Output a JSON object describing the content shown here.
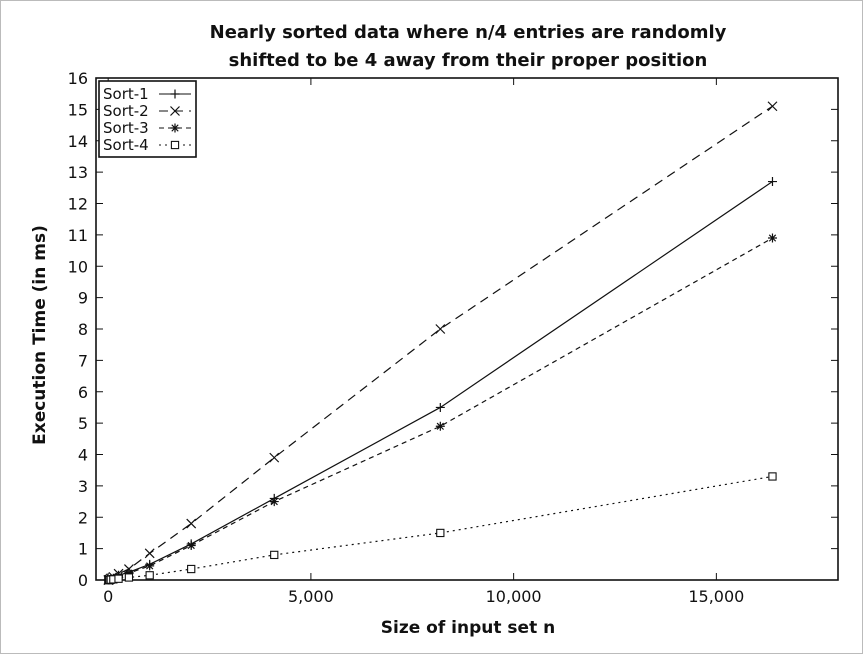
{
  "chart_data": {
    "type": "line",
    "title_line1": "Nearly sorted data where n/4 entries are randomly",
    "title_line2": "shifted to be 4 away from their proper position",
    "xlabel": "Size of input set n",
    "ylabel": "Execution Time (in ms)",
    "xlim": [
      -300,
      18000
    ],
    "ylim": [
      0,
      16
    ],
    "x_ticks": [
      0,
      5000,
      10000,
      15000
    ],
    "x_tick_labels": [
      "0",
      "5,000",
      "10,000",
      "15,000"
    ],
    "y_ticks": [
      0,
      1,
      2,
      3,
      4,
      5,
      6,
      7,
      8,
      9,
      10,
      11,
      12,
      13,
      14,
      15,
      16
    ],
    "y_tick_labels": [
      "0",
      "1",
      "2",
      "3",
      "4",
      "5",
      "6",
      "7",
      "8",
      "9",
      "10",
      "11",
      "12",
      "13",
      "14",
      "15",
      "16"
    ],
    "grid": false,
    "legend_position": "top-left",
    "x": [
      4,
      8,
      16,
      32,
      64,
      128,
      256,
      512,
      1024,
      2048,
      4096,
      8192,
      16384
    ],
    "series": [
      {
        "name": "Sort-1",
        "marker": "plus",
        "dash": "solid",
        "values": [
          0,
          0,
          0,
          0.01,
          0.02,
          0.05,
          0.15,
          0.25,
          0.5,
          1.15,
          2.6,
          5.5,
          12.7
        ]
      },
      {
        "name": "Sort-2",
        "marker": "x",
        "dash": "longdash",
        "values": [
          0,
          0,
          0,
          0.02,
          0.05,
          0.1,
          0.2,
          0.35,
          0.85,
          1.8,
          3.9,
          8.0,
          15.1
        ]
      },
      {
        "name": "Sort-3",
        "marker": "star",
        "dash": "shortdash",
        "values": [
          0,
          0,
          0,
          0.01,
          0.02,
          0.05,
          0.12,
          0.22,
          0.45,
          1.1,
          2.5,
          4.9,
          10.9
        ]
      },
      {
        "name": "Sort-4",
        "marker": "square",
        "dash": "dotted",
        "values": [
          0,
          0,
          0,
          0,
          0.01,
          0.02,
          0.04,
          0.08,
          0.15,
          0.35,
          0.8,
          1.5,
          3.3
        ]
      }
    ]
  }
}
